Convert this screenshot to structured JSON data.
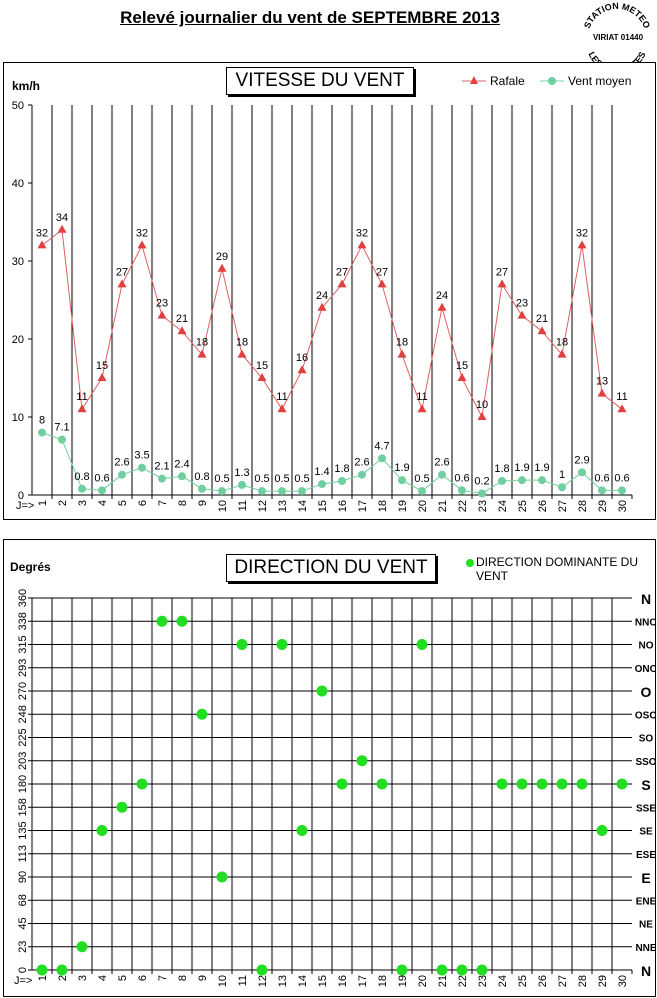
{
  "title": "Relevé journalier du vent de SEPTEMBRE 2013",
  "stamp": {
    "top_text": "STATION METEO",
    "middle_text": "VIRIAT 01440",
    "bottom_text": "LES FAUVETTES"
  },
  "colors": {
    "rafale": "#e06060",
    "rafale_marker": "#e04040",
    "moyen": "#6fcf9f",
    "direction": "#22dd22",
    "grid": "#000000"
  },
  "chart_data": [
    {
      "type": "line",
      "title": "VITESSE DU VENT",
      "ylabel": "km/h",
      "xlabel": "J=>",
      "ylim": [
        0,
        50
      ],
      "yticks": [
        0,
        10,
        20,
        30,
        40,
        50
      ],
      "grid": "vertical",
      "legend_placement": "top-right",
      "x": [
        1,
        2,
        3,
        4,
        5,
        6,
        7,
        8,
        9,
        10,
        11,
        12,
        13,
        14,
        15,
        16,
        17,
        18,
        19,
        20,
        21,
        22,
        23,
        24,
        25,
        26,
        27,
        28,
        29,
        30
      ],
      "series": [
        {
          "name": "Rafale",
          "marker": "triangle",
          "values": [
            32,
            34,
            11,
            15,
            27,
            32,
            23,
            21,
            18,
            29,
            18,
            15,
            11,
            16,
            24,
            27,
            32,
            27,
            18,
            11,
            24,
            15,
            10,
            27,
            23,
            21,
            18,
            32,
            13,
            11
          ]
        },
        {
          "name": "Vent moyen",
          "marker": "circle",
          "values": [
            8,
            7.1,
            0.8,
            0.6,
            2.6,
            3.5,
            2.1,
            2.4,
            0.8,
            0.5,
            1.3,
            0.5,
            0.5,
            0.5,
            1.4,
            1.8,
            2.6,
            4.7,
            1.9,
            0.5,
            2.6,
            0.6,
            0.2,
            1.8,
            1.9,
            1.9,
            1,
            2.9,
            0.6,
            0.6
          ]
        }
      ],
      "labels": {
        "Rafale": [
          "32",
          "34",
          "11",
          "15",
          "27",
          "32",
          "23",
          "21",
          "18",
          "29",
          "18",
          "15",
          "11",
          "16",
          "24",
          "27",
          "32",
          "27",
          "18",
          "11",
          "24",
          "15",
          "10",
          "27",
          "23",
          "21",
          "18",
          "32",
          "13",
          "11"
        ],
        "Vent moyen": [
          "8",
          "7.1",
          "0.8",
          "0.6",
          "2.6",
          "3.5",
          "2.1",
          "2.4",
          "0.8",
          "0.5",
          "1.3",
          "0.5",
          "0.5",
          "0.5",
          "1.4",
          "1.8",
          "2.6",
          "4.7",
          "1.9",
          "0.5",
          "2.6",
          "0.6",
          "0.2",
          "1.8",
          "1.9",
          "1.9",
          "1",
          "2.9",
          "0.6",
          "0.6"
        ]
      }
    },
    {
      "type": "scatter",
      "title": "DIRECTION DU VENT",
      "ylabel": "Degrés",
      "xlabel": "J=>",
      "ylim": [
        0,
        360
      ],
      "yticks": [
        0,
        23,
        45,
        68,
        90,
        113,
        135,
        158,
        180,
        203,
        225,
        248,
        270,
        293,
        315,
        338,
        360
      ],
      "ytick_values": [
        0,
        22.5,
        45,
        67.5,
        90,
        112.5,
        135,
        157.5,
        180,
        202.5,
        225,
        247.5,
        270,
        292.5,
        315,
        337.5,
        360
      ],
      "compass_labels": [
        "N",
        "NNE",
        "NE",
        "ENE",
        "E",
        "ESE",
        "SE",
        "SSE",
        "S",
        "SSO",
        "SO",
        "OSO",
        "O",
        "ONO",
        "NO",
        "NNO",
        "N"
      ],
      "grid": "both",
      "legend_placement": "top-right",
      "series": [
        {
          "name": "DIRECTION DOMINANTE DU VENT",
          "x": [
            1,
            2,
            3,
            4,
            5,
            6,
            7,
            8,
            9,
            10,
            11,
            12,
            13,
            14,
            15,
            16,
            17,
            18,
            19,
            20,
            21,
            22,
            23,
            24,
            25,
            26,
            27,
            28,
            29,
            30
          ],
          "values": [
            0,
            0,
            22.5,
            135,
            157.5,
            180,
            337.5,
            337.5,
            247.5,
            90,
            315,
            0,
            315,
            135,
            270,
            180,
            202.5,
            180,
            0,
            315,
            0,
            0,
            0,
            180,
            180,
            180,
            180,
            180,
            135,
            180
          ]
        }
      ]
    }
  ]
}
